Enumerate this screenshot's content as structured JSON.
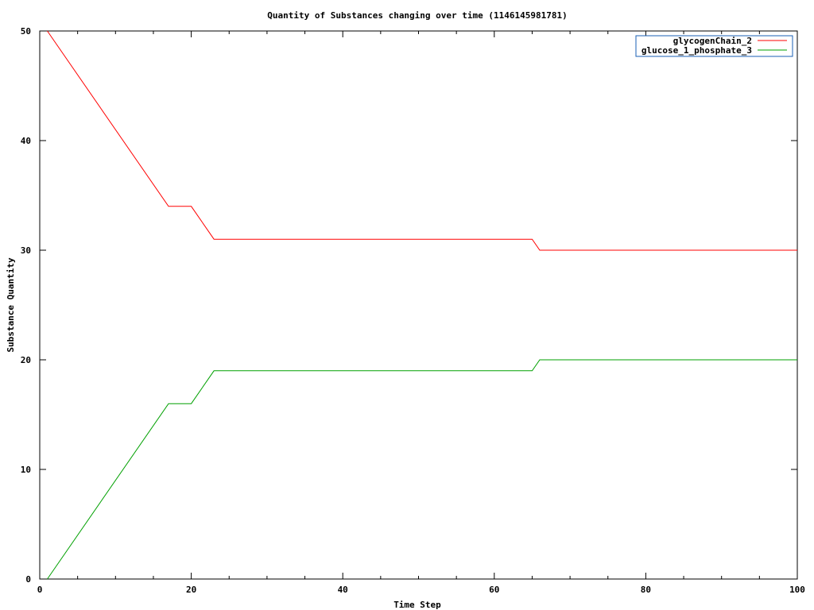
{
  "chart_data": {
    "type": "line",
    "title": "Quantity of Substances changing over time (1146145981781)",
    "xlabel": "Time Step",
    "ylabel": "Substance Quantity",
    "xlim": [
      0,
      100
    ],
    "ylim": [
      0,
      50
    ],
    "xticks": [
      0,
      20,
      40,
      60,
      80,
      100
    ],
    "yticks": [
      0,
      10,
      20,
      30,
      40,
      50
    ],
    "grid": false,
    "legend_position": "top-right",
    "series": [
      {
        "name": "glycogenChain_2",
        "color": "#ff0000",
        "x": [
          1,
          17,
          20,
          23,
          65,
          66,
          100
        ],
        "y": [
          50,
          34,
          34,
          31,
          31,
          30,
          30
        ]
      },
      {
        "name": "glucose_1_phosphate_3",
        "color": "#00a000",
        "x": [
          1,
          17,
          20,
          23,
          65,
          66,
          100
        ],
        "y": [
          0,
          16,
          16,
          19,
          19,
          20,
          20
        ]
      }
    ]
  }
}
